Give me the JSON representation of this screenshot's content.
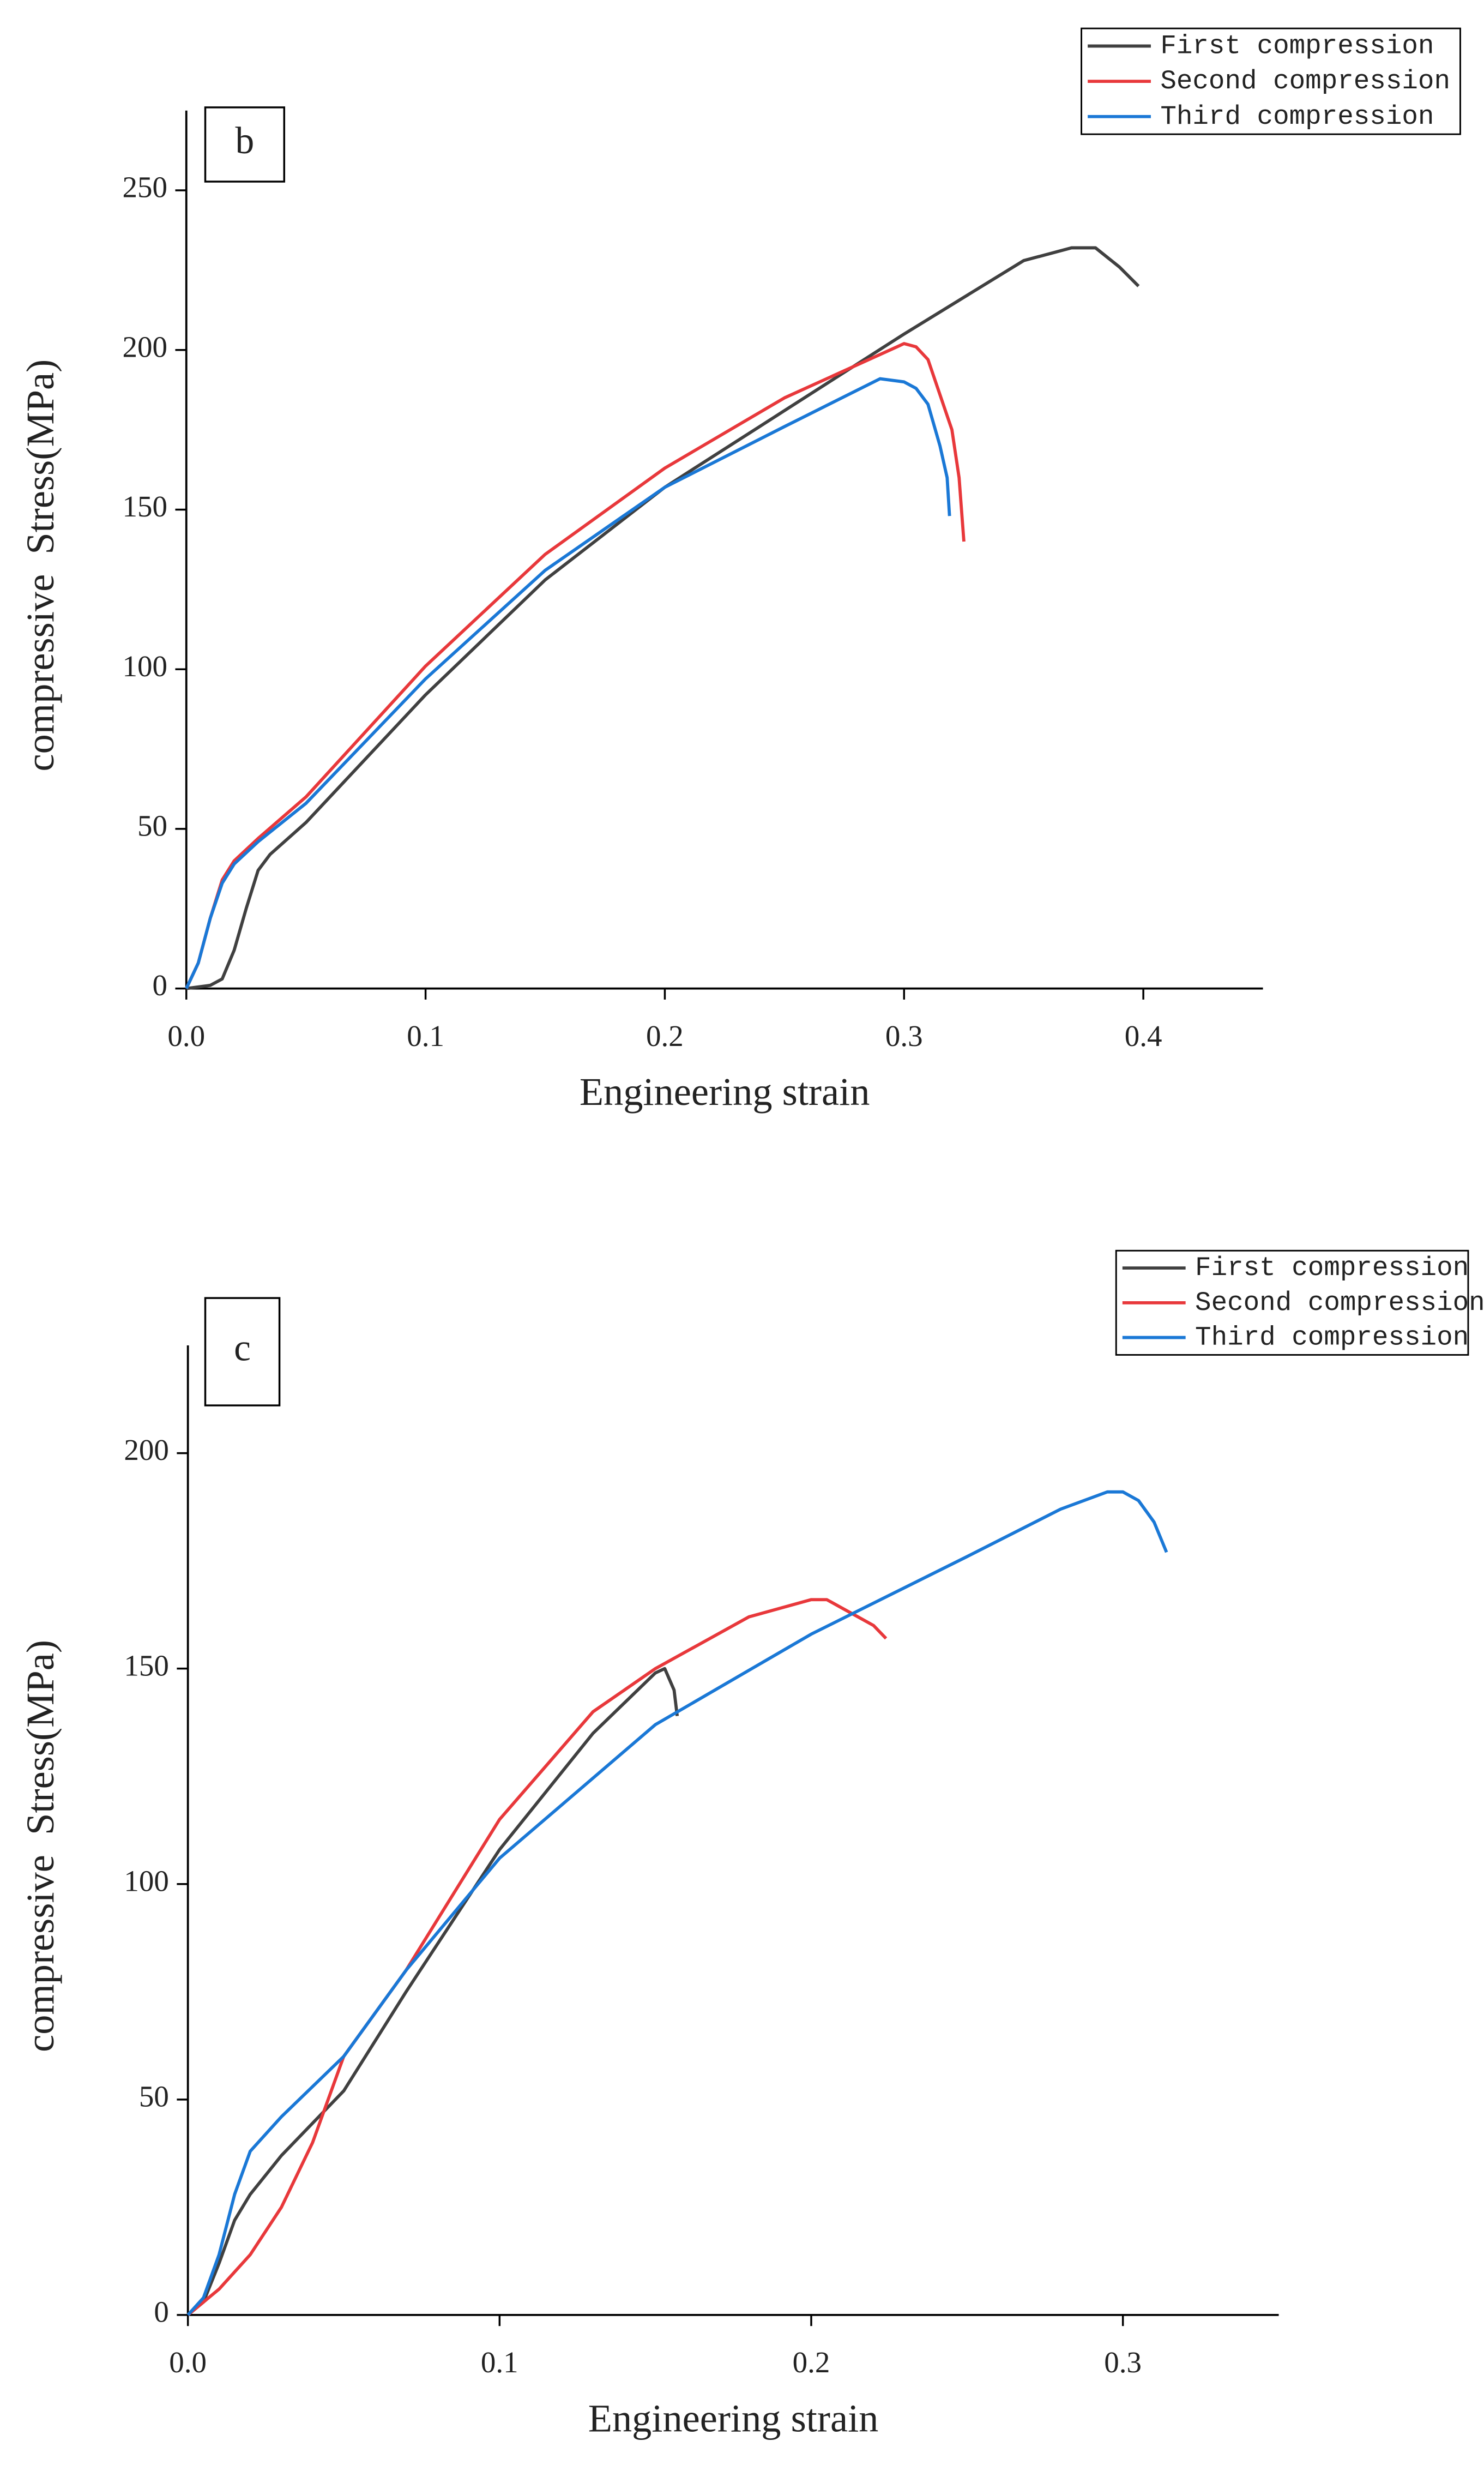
{
  "chart_data": [
    {
      "type": "line",
      "panel_label": "b",
      "x_label": "Engineering strain",
      "y_label": "compressive  Stress(MPa)",
      "xlim": [
        0,
        0.45
      ],
      "ylim": [
        0,
        275
      ],
      "xticks": [
        {
          "value": 0,
          "label": "0.0"
        },
        0.1,
        0.2,
        0.3,
        0.4
      ],
      "yticks": [
        0,
        50,
        100,
        150,
        200,
        250
      ],
      "legend": "upper right",
      "series": [
        {
          "name": "First compression",
          "color": "#404040",
          "x": [
            0,
            0.01,
            0.015,
            0.02,
            0.025,
            0.03,
            0.035,
            0.05,
            0.1,
            0.15,
            0.2,
            0.25,
            0.3,
            0.35,
            0.37,
            0.38,
            0.39,
            0.398
          ],
          "y": [
            0,
            1,
            3,
            12,
            25,
            37,
            42,
            52,
            92,
            128,
            157,
            181,
            205,
            228,
            232,
            232,
            226,
            220
          ]
        },
        {
          "name": "Second compression",
          "color": "#e8383b",
          "x": [
            0,
            0.005,
            0.01,
            0.015,
            0.02,
            0.03,
            0.05,
            0.1,
            0.15,
            0.2,
            0.25,
            0.3,
            0.305,
            0.31,
            0.315,
            0.32,
            0.323,
            0.325
          ],
          "y": [
            0,
            8,
            22,
            34,
            40,
            47,
            60,
            101,
            136,
            163,
            185,
            202,
            201,
            197,
            186,
            175,
            160,
            140
          ]
        },
        {
          "name": "Third compression",
          "color": "#1a78d6",
          "x": [
            0,
            0.005,
            0.01,
            0.015,
            0.02,
            0.03,
            0.05,
            0.1,
            0.15,
            0.2,
            0.25,
            0.29,
            0.3,
            0.305,
            0.31,
            0.315,
            0.318,
            0.319
          ],
          "y": [
            0,
            8,
            22,
            33,
            39,
            46,
            58,
            97,
            131,
            157,
            176,
            191,
            190,
            188,
            183,
            170,
            160,
            148
          ]
        }
      ]
    },
    {
      "type": "line",
      "panel_label": "c",
      "x_label": "Engineering strain",
      "y_label": "compressive  Stress(MPa)",
      "xlim": [
        0,
        0.35
      ],
      "ylim": [
        0,
        225
      ],
      "xticks": [
        {
          "value": 0,
          "label": "0.0"
        },
        0.1,
        0.2,
        0.3
      ],
      "yticks": [
        0,
        50,
        100,
        150,
        200
      ],
      "legend": "upper right",
      "series": [
        {
          "name": "First compression",
          "color": "#404040",
          "x": [
            0,
            0.005,
            0.01,
            0.015,
            0.02,
            0.03,
            0.05,
            0.07,
            0.1,
            0.13,
            0.15,
            0.153,
            0.156,
            0.157
          ],
          "y": [
            0,
            3,
            12,
            22,
            28,
            37,
            52,
            75,
            108,
            135,
            149,
            150,
            145,
            139
          ]
        },
        {
          "name": "Second compression",
          "color": "#e8383b",
          "x": [
            0,
            0.01,
            0.02,
            0.03,
            0.04,
            0.05,
            0.07,
            0.1,
            0.13,
            0.15,
            0.18,
            0.2,
            0.205,
            0.21,
            0.215,
            0.22,
            0.224
          ],
          "y": [
            0,
            6,
            14,
            25,
            40,
            60,
            80,
            115,
            140,
            150,
            162,
            166,
            166,
            164,
            162,
            160,
            157
          ]
        },
        {
          "name": "Third compression",
          "color": "#1a78d6",
          "x": [
            0,
            0.005,
            0.01,
            0.015,
            0.02,
            0.03,
            0.05,
            0.07,
            0.1,
            0.15,
            0.2,
            0.25,
            0.28,
            0.295,
            0.3,
            0.305,
            0.31,
            0.314
          ],
          "y": [
            0,
            4,
            14,
            28,
            38,
            46,
            60,
            80,
            106,
            137,
            158,
            176,
            187,
            191,
            191,
            189,
            184,
            177
          ]
        }
      ]
    }
  ]
}
